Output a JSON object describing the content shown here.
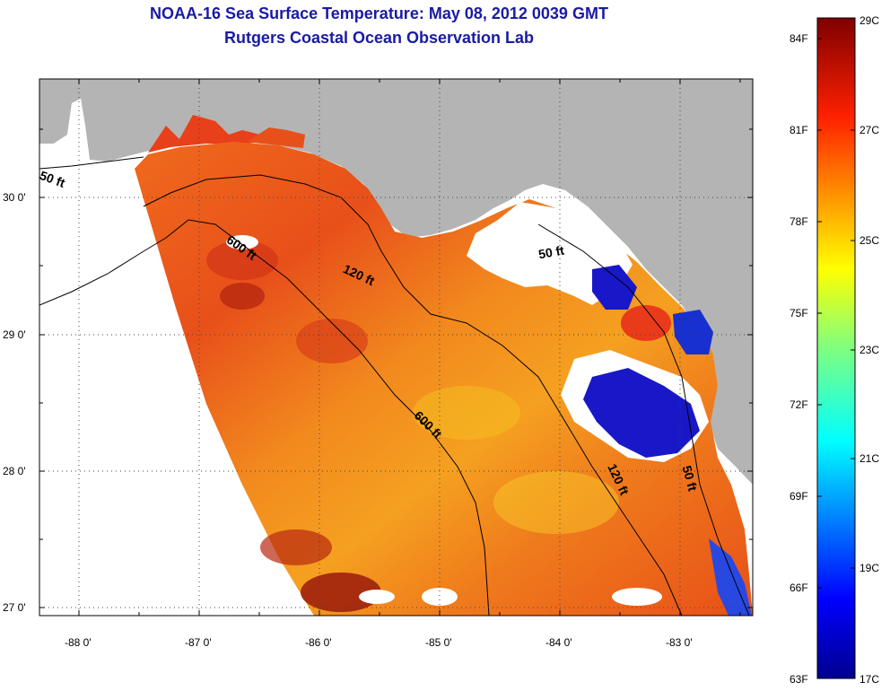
{
  "title": {
    "line1": "NOAA-16 Sea Surface Temperature:  May 08, 2012 0039 GMT",
    "line2": "Rutgers Coastal Ocean Observation Lab"
  },
  "map": {
    "lon_labels": [
      "-88 0'",
      "-87 0'",
      "-86 0'",
      "-85 0'",
      "-84 0'",
      "-83 0'"
    ],
    "lat_labels": [
      "30 0'",
      "29 0'",
      "28 0'",
      "27 0'"
    ],
    "contour_labels": [
      "50 ft",
      "600 ft",
      "120 ft",
      "50 ft",
      "600 ft",
      "120 ft",
      "50 ft"
    ],
    "colors": {
      "land": "#b4b4b4",
      "cloud": "#ffffff",
      "ocean_warm": "#e8501a"
    }
  },
  "colorbar": {
    "f_labels": [
      "84F",
      "81F",
      "78F",
      "75F",
      "72F",
      "69F",
      "66F",
      "63F"
    ],
    "c_labels": [
      "29C",
      "27C",
      "25C",
      "23C",
      "21C",
      "19C",
      "17C"
    ]
  }
}
